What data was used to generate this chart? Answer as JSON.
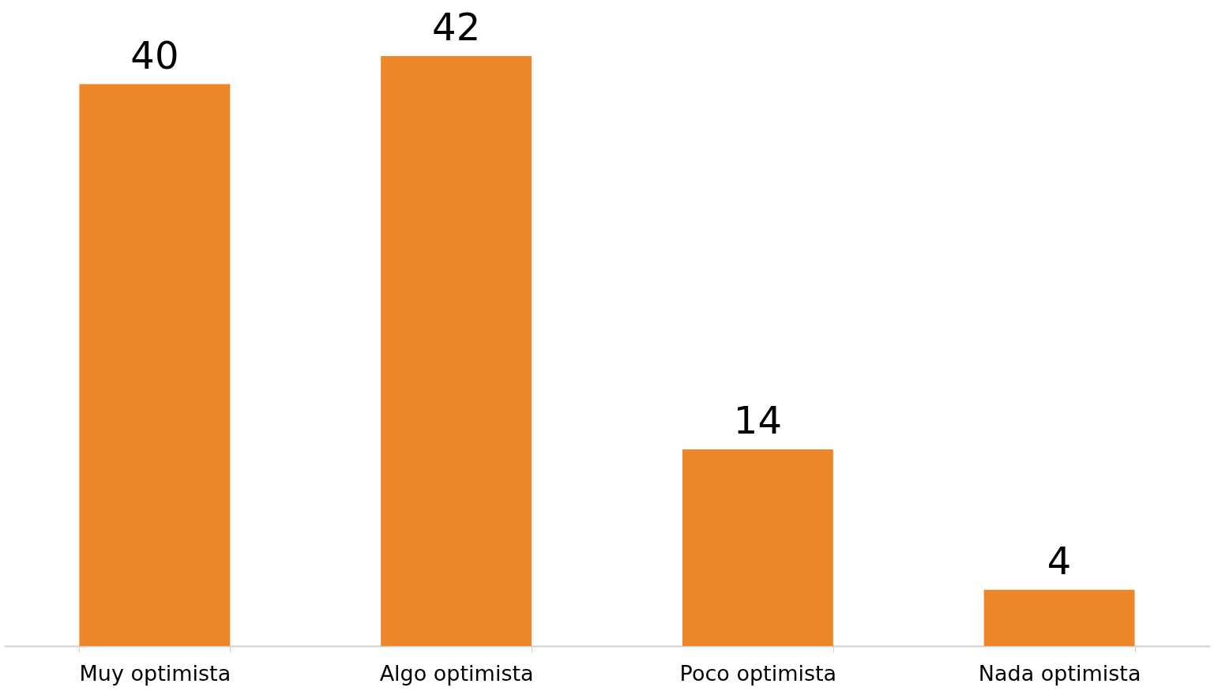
{
  "chart_data": {
    "type": "bar",
    "categories": [
      "Muy optimista",
      "Algo optimista",
      "Poco optimista",
      "Nada optimista"
    ],
    "values": [
      40,
      42,
      14,
      4
    ],
    "color": "#ed8529",
    "data_labels": true,
    "grid": false
  }
}
